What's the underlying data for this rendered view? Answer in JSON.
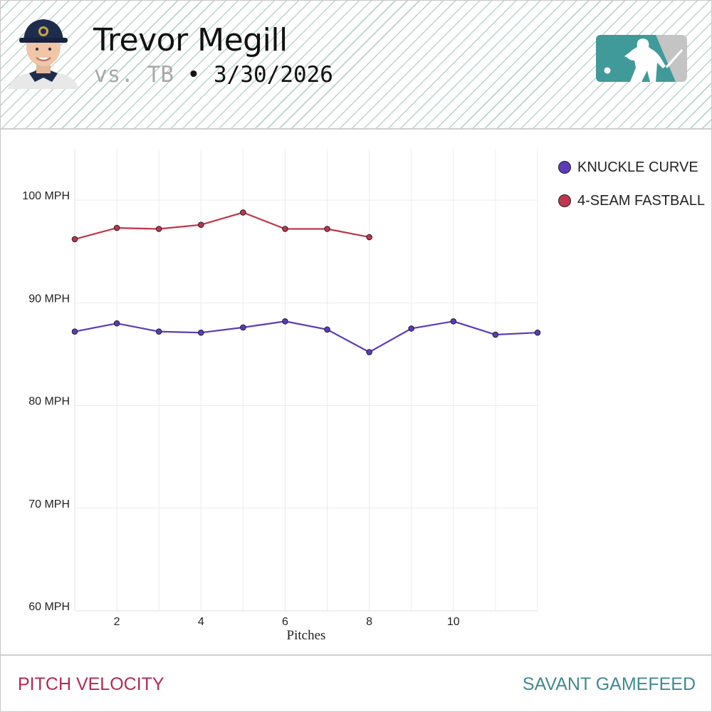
{
  "header": {
    "player_name": "Trevor Megill",
    "opponent": "vs. TB",
    "separator": "•",
    "game_date": "3/30/2026"
  },
  "footer": {
    "left_label": "PITCH VELOCITY",
    "right_label": "SAVANT GAMEFEED"
  },
  "colors": {
    "header_stripe": "#b9d4cc",
    "footer_left": "#b5294e",
    "footer_right": "#418a91",
    "logo_left": "#419a9a",
    "logo_right": "#c4c4c4"
  },
  "chart_data": {
    "type": "line",
    "xlabel": "Pitches",
    "ylabel": "",
    "xlim": [
      1,
      12
    ],
    "ylim": [
      60,
      105
    ],
    "x_ticks": [
      2,
      4,
      6,
      8,
      10
    ],
    "y_ticks": [
      60,
      70,
      80,
      90,
      100
    ],
    "y_tick_labels": [
      "60 MPH",
      "70 MPH",
      "80 MPH",
      "90 MPH",
      "100 MPH"
    ],
    "grid": true,
    "legend_position": "top-right",
    "series": [
      {
        "name": "KNUCKLE CURVE",
        "color": "#5b3bb8",
        "x": [
          1,
          2,
          3,
          4,
          5,
          6,
          7,
          8,
          9,
          10,
          11,
          12
        ],
        "y": [
          87.2,
          88.0,
          87.2,
          87.1,
          87.6,
          88.2,
          87.4,
          85.2,
          87.5,
          88.2,
          86.9,
          87.1
        ]
      },
      {
        "name": "4-SEAM FASTBALL",
        "color": "#c0344d",
        "x": [
          1,
          2,
          3,
          4,
          5,
          6,
          7,
          8
        ],
        "y": [
          96.2,
          97.3,
          97.2,
          97.6,
          98.8,
          97.2,
          97.2,
          96.4
        ]
      }
    ]
  }
}
